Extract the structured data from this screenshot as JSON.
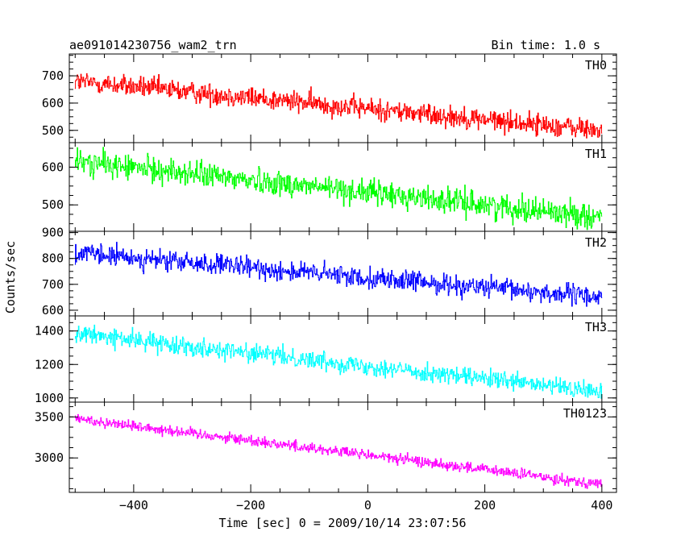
{
  "chart_data": {
    "type": "line",
    "title_left": "ae091014230756_wam2_trn",
    "title_right": "Bin time: 1.0 s",
    "xlabel": "Time [sec] 0 = 2009/10/14 23:07:56",
    "ylabel": "Counts/sec",
    "xlim": [
      -510,
      425
    ],
    "x_ticks": [
      -400,
      -200,
      0,
      200,
      400
    ],
    "x_tick_labels": [
      "−400",
      "−200",
      "0",
      "200",
      "400"
    ],
    "x_range": [
      -500,
      400
    ],
    "bin_time": 1.0,
    "series": [
      {
        "name": "TH0",
        "color": "#ff0000",
        "ylim": [
          455,
          780
        ],
        "y_ticks": [
          500,
          600,
          700
        ],
        "y_tick_labels": [
          "500",
          "600",
          "700"
        ],
        "start": 680,
        "end": 500,
        "noise": 33
      },
      {
        "name": "TH1",
        "color": "#00ff00",
        "ylim": [
          430,
          665
        ],
        "y_ticks": [
          500,
          600
        ],
        "y_tick_labels": [
          "500",
          "600"
        ],
        "start": 615,
        "end": 468,
        "noise": 28
      },
      {
        "name": "TH2",
        "color": "#0000ff",
        "ylim": [
          578,
          905
        ],
        "y_ticks": [
          600,
          700,
          800,
          900
        ],
        "y_tick_labels": [
          "600",
          "700",
          "800",
          "900"
        ],
        "start": 820,
        "end": 650,
        "noise": 33
      },
      {
        "name": "TH3",
        "color": "#00ffff",
        "ylim": [
          975,
          1490
        ],
        "y_ticks": [
          1000,
          1200,
          1400
        ],
        "y_tick_labels": [
          "1000",
          "1200",
          "1400"
        ],
        "start": 1385,
        "end": 1035,
        "noise": 45
      },
      {
        "name": "TH0123",
        "color": "#ff00ff",
        "ylim": [
          2580,
          3680
        ],
        "y_ticks": [
          3000,
          3500
        ],
        "y_tick_labels": [
          "3000",
          "3500"
        ],
        "start": 3480,
        "end": 2680,
        "noise": 55
      }
    ]
  }
}
